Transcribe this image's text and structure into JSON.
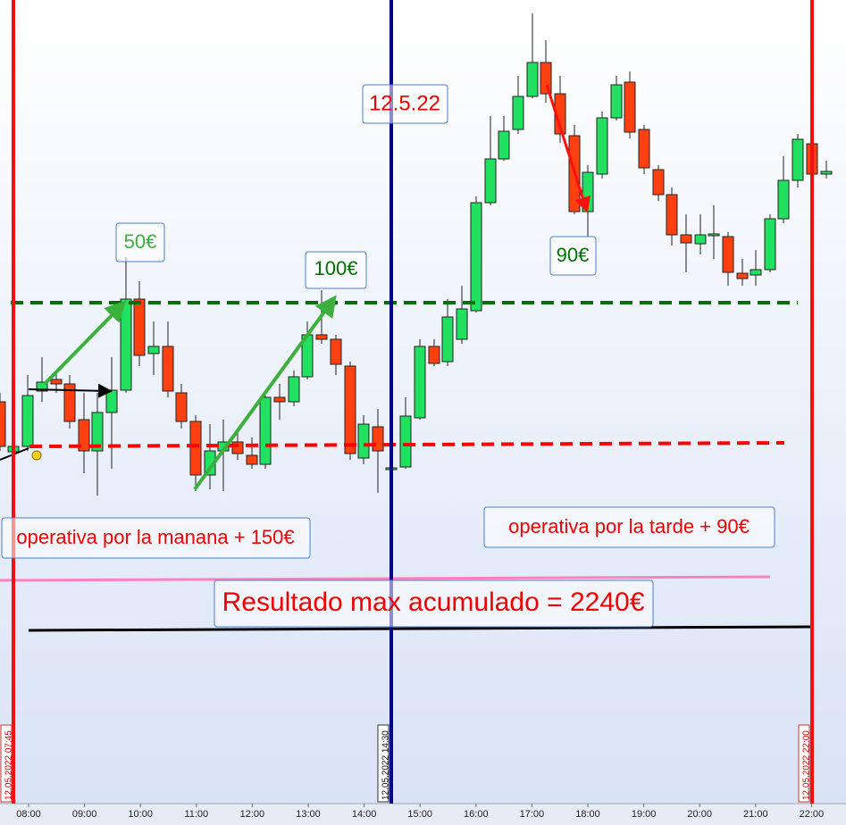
{
  "time_axis": {
    "labels": [
      "08:00",
      "09:00",
      "10:00",
      "11:00",
      "12:00",
      "13:00",
      "14:00",
      "15:00",
      "16:00",
      "17:00",
      "18:00",
      "19:00",
      "20:00",
      "21:00",
      "22:00"
    ]
  },
  "session_markers": [
    "12.05.2022 07:45",
    "12.05.2022 14:30",
    "12.05.2022 22:00"
  ],
  "annotations": {
    "date": "12.5.22",
    "trade_1": "50€",
    "trade_2": "100€",
    "trade_3": "90€",
    "morning": "operativa por la manana + 150€",
    "afternoon": "operativa por la tarde + 90€",
    "result": "Resultado max acumulado = 2240€"
  }
}
